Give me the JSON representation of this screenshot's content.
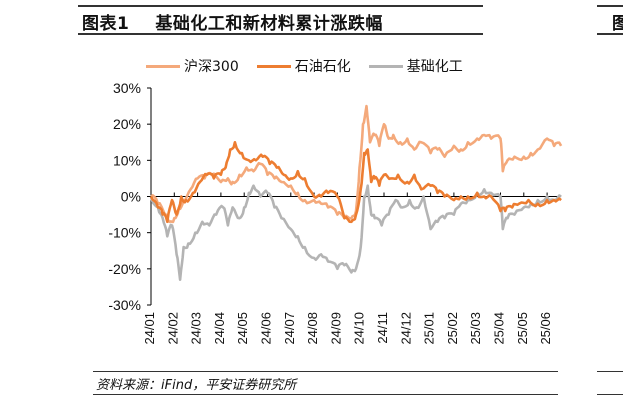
{
  "header": {
    "figure_label": "图表1",
    "title": "基础化工和新材料累计涨跌幅",
    "next_figure_partial": "图"
  },
  "source": "资料来源：iFind，平安证券研究所",
  "chart_data": {
    "type": "line",
    "title": "基础化工和新材料累计涨跌幅",
    "xlabel": "",
    "ylabel": "",
    "ylim": [
      -30,
      30
    ],
    "yticks": [
      30,
      20,
      10,
      0,
      -10,
      -20,
      -30
    ],
    "ytick_labels": [
      "30%",
      "20%",
      "10%",
      "0%",
      "-10%",
      "-20%",
      "-30%"
    ],
    "xtick_labels": [
      "24/01",
      "24/02",
      "24/03",
      "24/04",
      "24/05",
      "24/06",
      "24/07",
      "24/08",
      "24/09",
      "24/10",
      "24/11",
      "24/12",
      "25/01",
      "25/02",
      "25/03",
      "25/04",
      "25/05",
      "25/06"
    ],
    "x_unit": "months since 2024-01",
    "legend_position": "top",
    "grid": false,
    "series": [
      {
        "name": "沪深300",
        "color": "#F4A97B",
        "x": [
          0,
          0.3,
          0.6,
          0.8,
          1.0,
          1.2,
          1.4,
          1.7,
          2.0,
          2.3,
          2.6,
          3.0,
          3.3,
          3.5,
          3.8,
          4.1,
          4.4,
          4.7,
          5.0,
          5.3,
          5.6,
          6.0,
          6.3,
          6.6,
          7.0,
          7.3,
          7.6,
          8.0,
          8.3,
          8.6,
          8.8,
          8.95,
          9.1,
          9.25,
          9.4,
          9.6,
          9.8,
          10.0,
          10.2,
          10.4,
          10.7,
          11.0,
          11.3,
          11.6,
          12.0,
          12.3,
          12.6,
          13.0,
          13.3,
          13.6,
          14.0,
          14.3,
          14.6,
          15.0,
          15.1,
          15.3,
          15.6,
          16.0,
          16.3,
          16.6,
          17.0,
          17.3,
          17.6
        ],
        "values": [
          0,
          -2,
          -5,
          -7,
          -6,
          -3,
          -1,
          2,
          5,
          5,
          6,
          4,
          5,
          4,
          6,
          8,
          7,
          9,
          6,
          5,
          4,
          3,
          1,
          -1,
          -1,
          -2,
          -3,
          -5,
          -6,
          -6,
          -4,
          8,
          20,
          25,
          15,
          17,
          14,
          20,
          16,
          17,
          15,
          16,
          13,
          15,
          12,
          13,
          11,
          14,
          13,
          15,
          16,
          17,
          16,
          16,
          7,
          10,
          11,
          11,
          12,
          13,
          16,
          14,
          14
        ]
      },
      {
        "name": "石油石化",
        "color": "#ED7D31",
        "x": [
          0,
          0.3,
          0.5,
          0.7,
          0.9,
          1.1,
          1.3,
          1.5,
          1.8,
          2.1,
          2.4,
          2.7,
          3.0,
          3.2,
          3.4,
          3.6,
          3.9,
          4.2,
          4.5,
          4.8,
          5.1,
          5.4,
          5.7,
          6.0,
          6.3,
          6.6,
          7.0,
          7.3,
          7.6,
          8.0,
          8.3,
          8.6,
          8.8,
          9.0,
          9.15,
          9.3,
          9.45,
          9.6,
          9.8,
          10.0,
          10.3,
          10.6,
          11.0,
          11.3,
          11.6,
          12.0,
          12.3,
          12.6,
          13.0,
          13.3,
          13.6,
          14.0,
          14.3,
          14.6,
          15.0,
          15.2,
          15.5,
          15.8,
          16.2,
          16.6,
          17.0,
          17.3,
          17.6
        ],
        "values": [
          0,
          -3,
          -5,
          -7,
          -1,
          -5,
          0,
          -1,
          1,
          4,
          6,
          5,
          6,
          8,
          13,
          15,
          12,
          10,
          10,
          11,
          9,
          8,
          6,
          5,
          7,
          5,
          0,
          0,
          1,
          0,
          -6,
          -7,
          -5,
          2,
          12,
          13,
          4,
          5,
          3,
          6,
          5,
          6,
          4,
          6,
          2,
          3,
          1,
          0,
          -1,
          0,
          0,
          1,
          0,
          0,
          -4,
          -4,
          -3,
          -2,
          -1,
          -2,
          -1,
          -1,
          -1
        ]
      },
      {
        "name": "基础化工",
        "color": "#B4B4B4",
        "x": [
          0,
          0.3,
          0.5,
          0.7,
          0.9,
          1.1,
          1.25,
          1.4,
          1.6,
          1.9,
          2.2,
          2.5,
          2.8,
          3.1,
          3.3,
          3.5,
          3.8,
          4.0,
          4.2,
          4.4,
          4.7,
          5.0,
          5.3,
          5.6,
          6.0,
          6.3,
          6.6,
          7.0,
          7.3,
          7.6,
          8.0,
          8.3,
          8.6,
          8.8,
          9.0,
          9.15,
          9.3,
          9.45,
          9.6,
          9.9,
          10.2,
          10.5,
          10.8,
          11.1,
          11.4,
          11.7,
          12.0,
          12.3,
          12.6,
          13.0,
          13.3,
          13.6,
          14.0,
          14.3,
          14.6,
          15.0,
          15.1,
          15.3,
          15.6,
          16.0,
          16.3,
          16.6,
          17.0,
          17.3,
          17.6
        ],
        "values": [
          0,
          -3,
          -6,
          -11,
          -8,
          -16,
          -23,
          -14,
          -13,
          -10,
          -7,
          -8,
          -5,
          -3,
          -8,
          -3,
          -6,
          -3,
          1,
          3,
          0,
          1,
          -3,
          -6,
          -9,
          -11,
          -14,
          -17,
          -16,
          -18,
          -20,
          -19,
          -21,
          -20,
          -14,
          0,
          3,
          -5,
          -6,
          -8,
          -5,
          -1,
          -3,
          -1,
          -3,
          0,
          -9,
          -7,
          -6,
          -5,
          -2,
          -1,
          1,
          2,
          1,
          0,
          -9,
          -6,
          -5,
          -3,
          -2,
          -1,
          0,
          -1,
          0
        ]
      }
    ]
  }
}
